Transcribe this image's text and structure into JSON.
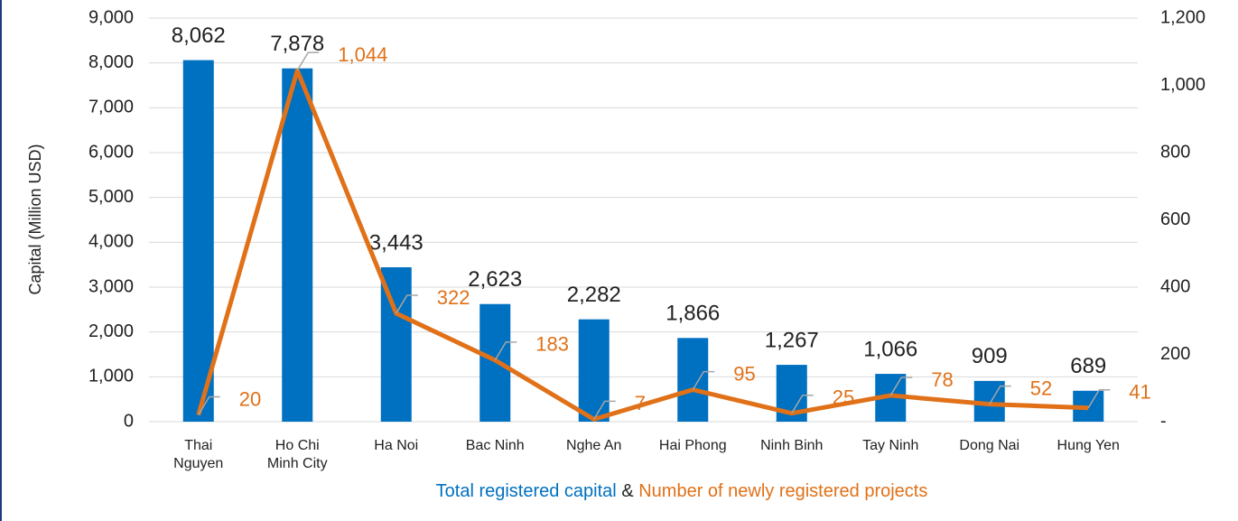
{
  "chart_data": {
    "type": "bar_line",
    "categories": [
      "Thai Nguyen",
      "Ho Chi Minh City",
      "Ha Noi",
      "Bac Ninh",
      "Nghe An",
      "Hai Phong",
      "Ninh Binh",
      "Tay Ninh",
      "Dong Nai",
      "Hung Yen"
    ],
    "series": [
      {
        "name": "Total registered capital",
        "type": "bar",
        "color": "#0070c0",
        "values": [
          8062,
          7878,
          3443,
          2623,
          2282,
          1866,
          1267,
          1066,
          909,
          689
        ],
        "value_labels": [
          "8,062",
          "7,878",
          "3,443",
          "2,623",
          "2,282",
          "1,866",
          "1,267",
          "1,066",
          "909",
          "689"
        ]
      },
      {
        "name": "Number of newly registered projects",
        "type": "line",
        "axis": "y2",
        "color": "#e07118",
        "values": [
          20,
          1044,
          322,
          183,
          7,
          95,
          25,
          78,
          52,
          41
        ],
        "value_labels": [
          "20",
          "1,044",
          "322",
          "183",
          "7",
          "95",
          "25",
          "78",
          "52",
          "41"
        ]
      }
    ],
    "legend_separator": "&",
    "ylabel": "Capital (Million USD)",
    "ylim": [
      0,
      9000
    ],
    "yticks": [
      {
        "value": 0,
        "label": "0"
      },
      {
        "value": 1000,
        "label": "1,000"
      },
      {
        "value": 2000,
        "label": "2,000"
      },
      {
        "value": 3000,
        "label": "3,000"
      },
      {
        "value": 4000,
        "label": "4,000"
      },
      {
        "value": 5000,
        "label": "5,000"
      },
      {
        "value": 6000,
        "label": "6,000"
      },
      {
        "value": 7000,
        "label": "7,000"
      },
      {
        "value": 8000,
        "label": "8,000"
      },
      {
        "value": 9000,
        "label": "9,000"
      }
    ],
    "y2lim": [
      0,
      1200
    ],
    "y2ticks": [
      {
        "value": 0,
        "label": "-"
      },
      {
        "value": 200,
        "label": "200"
      },
      {
        "value": 400,
        "label": "400"
      },
      {
        "value": 600,
        "label": "600"
      },
      {
        "value": 800,
        "label": "800"
      },
      {
        "value": 1000,
        "label": "1,000"
      },
      {
        "value": 1200,
        "label": "1,200"
      }
    ],
    "grid": true
  }
}
